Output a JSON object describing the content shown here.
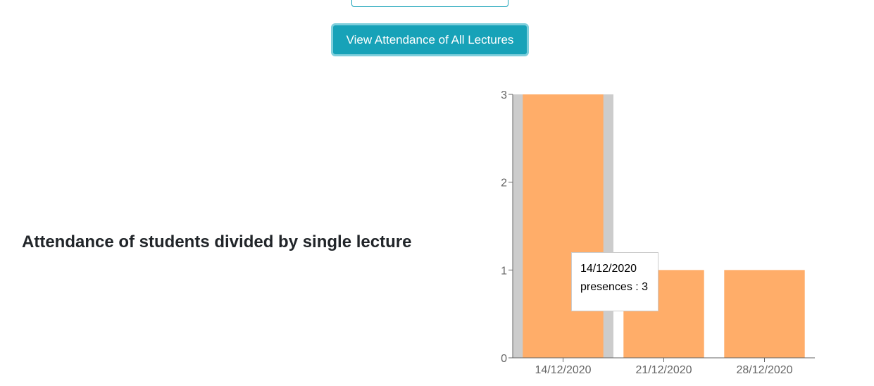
{
  "actions": {
    "view_all_label": "View Attendance of All Lectures"
  },
  "section": {
    "title": "Attendance of students divided by single lecture"
  },
  "colors": {
    "button": "#17a2b8",
    "bar": "#ffad69",
    "hover_cursor": "#cccccc",
    "axis": "#666666"
  },
  "chart_data": {
    "type": "bar",
    "categories": [
      "14/12/2020",
      "21/12/2020",
      "28/12/2020"
    ],
    "series": [
      {
        "values": [
          3,
          1,
          1
        ]
      }
    ],
    "title": "",
    "xlabel": "",
    "ylabel": "",
    "ylim": [
      0,
      3
    ],
    "yticks": [
      0,
      1,
      2,
      3
    ],
    "grid": false,
    "legend": "none",
    "highlighted_category": "14/12/2020"
  },
  "tooltip": {
    "date": "14/12/2020",
    "text": "presences : 3"
  }
}
